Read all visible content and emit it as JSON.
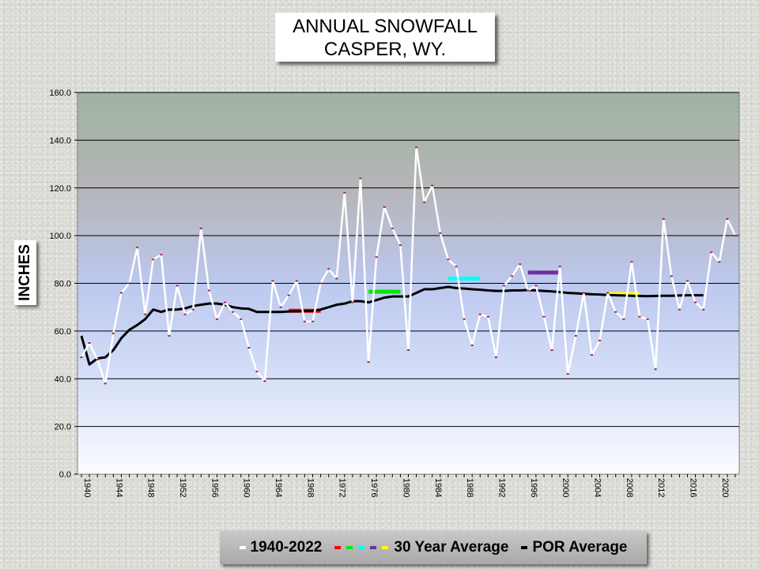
{
  "chart_data": {
    "type": "line",
    "title_line1": "ANNUAL SNOWFALL",
    "title_line2": "CASPER, WY.",
    "ylabel": "INCHES",
    "ylim": [
      0,
      160
    ],
    "yticks": [
      "0.0",
      "20.0",
      "40.0",
      "60.0",
      "80.0",
      "100.0",
      "120.0",
      "140.0",
      "160.0"
    ],
    "xticks": [
      1940,
      1944,
      1948,
      1952,
      1956,
      1960,
      1964,
      1968,
      1972,
      1976,
      1980,
      1984,
      1988,
      1992,
      1996,
      2000,
      2004,
      2008,
      2012,
      2016,
      2020
    ],
    "x_start": 1940,
    "x_end": 2022,
    "grid": true,
    "series": [
      {
        "name": "1940-2022",
        "color": "#ffffff",
        "values": [
          49,
          55,
          48,
          38,
          59,
          76,
          80,
          95,
          67,
          90,
          92,
          58,
          79,
          67,
          69,
          103,
          77,
          65,
          72,
          68,
          65,
          53,
          43,
          39,
          81,
          70,
          75,
          81,
          64,
          64,
          80,
          86,
          82,
          118,
          72,
          124,
          47,
          91,
          112,
          103,
          96,
          52,
          137,
          114,
          121,
          101,
          90,
          87,
          65,
          54,
          67,
          66,
          49,
          79,
          83,
          88,
          77,
          79,
          66,
          52,
          87,
          42,
          58,
          76,
          50,
          56,
          76,
          68,
          65,
          89,
          66,
          65,
          44,
          107,
          83,
          69,
          81,
          72,
          69,
          93,
          89,
          107,
          100
        ]
      },
      {
        "name": "POR Average",
        "color": "#000000",
        "x": [
          1940,
          1941,
          1942,
          1943,
          1944,
          1945,
          1946,
          1947,
          1948,
          1949,
          1950,
          1951,
          1952,
          1953,
          1954,
          1955,
          1956,
          1957,
          1958,
          1959,
          1960,
          1961,
          1962,
          1963,
          1964,
          1965,
          1966,
          1967,
          1968,
          1969,
          1970,
          1971,
          1972,
          1973,
          1974,
          1975,
          1976,
          1977,
          1978,
          1979,
          1980,
          1981,
          1982,
          1983,
          1984,
          1985,
          1986,
          1987,
          1988,
          1989,
          1990,
          1991,
          1992,
          1993,
          1994,
          1995,
          1996,
          1997,
          1998,
          1999,
          2000,
          2001,
          2002,
          2003,
          2004,
          2005,
          2006,
          2007,
          2008,
          2009,
          2010,
          2011,
          2012,
          2013,
          2014,
          2015,
          2016,
          2017,
          2018
        ],
        "values": [
          58,
          46,
          48.5,
          49,
          52,
          57,
          60.5,
          62.5,
          65,
          69,
          68,
          69,
          69,
          69.5,
          70.5,
          71,
          71.5,
          71.5,
          71,
          70,
          69.5,
          69.3,
          68,
          68,
          68,
          68,
          68.2,
          68.3,
          68.4,
          68.5,
          69,
          70,
          71,
          71.5,
          72.5,
          72.5,
          72,
          73,
          74,
          74.5,
          74.5,
          74.5,
          76,
          77.5,
          77.5,
          78,
          78.5,
          78,
          77.8,
          77.5,
          77.3,
          77,
          76.8,
          76.8,
          77,
          77,
          77.2,
          77,
          76.8,
          76.6,
          76.3,
          76,
          75.8,
          75.6,
          75.4,
          75.3,
          75.1,
          75,
          74.9,
          74.8,
          74.7,
          74.6,
          74.7,
          74.8,
          74.8,
          74.9,
          75,
          75,
          75
        ]
      }
    ],
    "thirty_year_averages": [
      {
        "start": 1966,
        "end": 1970,
        "value": 68.5,
        "color": "#ff0000"
      },
      {
        "start": 1976,
        "end": 1980,
        "value": 76.5,
        "color": "#00e600"
      },
      {
        "start": 1986,
        "end": 1990,
        "value": 82,
        "color": "#00ffff"
      },
      {
        "start": 1996,
        "end": 2000,
        "value": 84.5,
        "color": "#7030a0"
      },
      {
        "start": 2006,
        "end": 2010,
        "value": 75.5,
        "color": "#ffff00"
      }
    ],
    "legend": {
      "series_label": "1940-2022",
      "thirty_label": "30 Year Average",
      "por_label": "POR Average"
    }
  }
}
